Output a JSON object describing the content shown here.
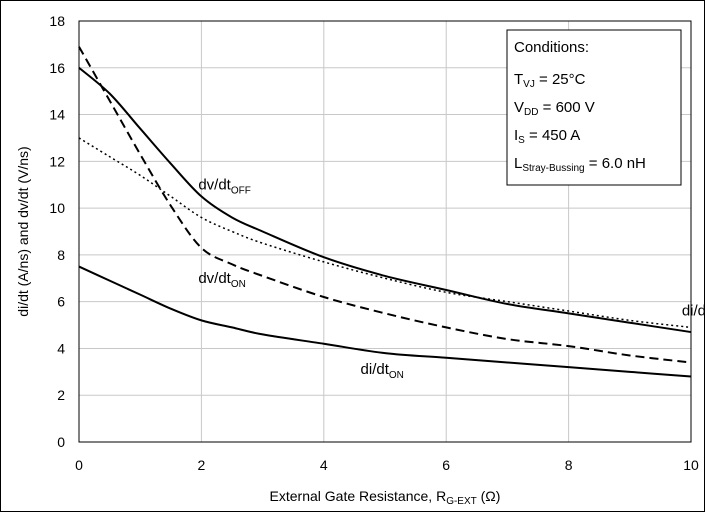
{
  "chart_data": {
    "type": "line",
    "xlabel": "External Gate Resistance, R",
    "xlabel_sub": "G-EXT",
    "xlabel_unit": " (Ω)",
    "ylabel": "di/dt (A/ns) and dv/dt (V/ns)",
    "xlim": [
      0,
      10
    ],
    "ylim": [
      0,
      18
    ],
    "xticks": [
      0,
      2,
      4,
      6,
      8,
      10
    ],
    "yticks": [
      0,
      2,
      4,
      6,
      8,
      10,
      12,
      14,
      16,
      18
    ],
    "grid": true,
    "series": [
      {
        "name": "dv/dt",
        "sub": "OFF",
        "style": "solid",
        "x": [
          0,
          0.5,
          1,
          1.5,
          2,
          2.5,
          3,
          4,
          5,
          6,
          7,
          8,
          9,
          10
        ],
        "y": [
          16.0,
          14.9,
          13.4,
          11.9,
          10.5,
          9.6,
          9.0,
          7.9,
          7.1,
          6.5,
          5.9,
          5.5,
          5.1,
          4.7
        ]
      },
      {
        "name": "dv/dt",
        "sub": "ON",
        "style": "dashed",
        "x": [
          0,
          0.5,
          1,
          1.5,
          2,
          2.5,
          3,
          4,
          5,
          6,
          7,
          8,
          9,
          10
        ],
        "y": [
          16.9,
          14.6,
          12.3,
          10.1,
          8.3,
          7.6,
          7.1,
          6.2,
          5.5,
          4.9,
          4.4,
          4.1,
          3.7,
          3.4
        ]
      },
      {
        "name": "di/dt",
        "sub": "OFF",
        "style": "dotted",
        "x": [
          0,
          0.5,
          1,
          1.5,
          2,
          2.5,
          3,
          4,
          5,
          6,
          7,
          8,
          9,
          10
        ],
        "y": [
          13.0,
          12.2,
          11.4,
          10.5,
          9.6,
          9.0,
          8.5,
          7.7,
          7.0,
          6.4,
          6.0,
          5.6,
          5.2,
          4.9
        ]
      },
      {
        "name": "di/dt",
        "sub": "ON",
        "style": "solid",
        "x": [
          0,
          0.5,
          1,
          1.5,
          2,
          2.5,
          3,
          4,
          5,
          6,
          7,
          8,
          9,
          10
        ],
        "y": [
          7.5,
          6.9,
          6.3,
          5.7,
          5.2,
          4.9,
          4.6,
          4.2,
          3.8,
          3.6,
          3.4,
          3.2,
          3.0,
          2.8
        ]
      }
    ],
    "annotations": [
      {
        "main": "dv/dt",
        "sub": "OFF",
        "x": 1.95,
        "y": 10.8
      },
      {
        "main": "dv/dt",
        "sub": "ON",
        "x": 1.95,
        "y": 6.8
      },
      {
        "main": "di/dt",
        "sub": "OFF",
        "x": 9.85,
        "y": 5.4
      },
      {
        "main": "di/dt",
        "sub": "ON",
        "x": 4.6,
        "y": 2.9
      }
    ],
    "conditions": {
      "title": "Conditions:",
      "lines": [
        {
          "main": "T",
          "sub": "VJ",
          "rest": " = 25°C"
        },
        {
          "main": "V",
          "sub": "DD",
          "rest": " = 600 V"
        },
        {
          "main": "I",
          "sub": "S",
          "rest": " = 450 A"
        },
        {
          "main": "L",
          "sub": "Stray-Bussing",
          "rest": " = 6.0 nH"
        }
      ]
    }
  }
}
